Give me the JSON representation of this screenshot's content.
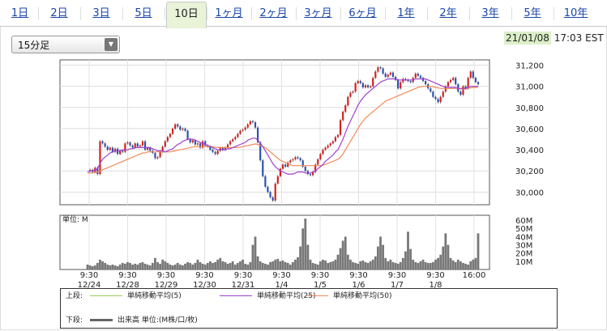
{
  "tabs": [
    {
      "label": "1日",
      "active": false
    },
    {
      "label": "2日",
      "active": false
    },
    {
      "label": "3日",
      "active": false
    },
    {
      "label": "5日",
      "active": false
    },
    {
      "label": "10日",
      "active": true
    },
    {
      "label": "1ヶ月",
      "active": false
    },
    {
      "label": "2ヶ月",
      "active": false
    },
    {
      "label": "3ヶ月",
      "active": false
    },
    {
      "label": "6ヶ月",
      "active": false
    },
    {
      "label": "1年",
      "active": false
    },
    {
      "label": "2年",
      "active": false
    },
    {
      "label": "3年",
      "active": false
    },
    {
      "label": "5年",
      "active": false
    },
    {
      "label": "10年",
      "active": false
    }
  ],
  "interval_select": {
    "value": "15分足"
  },
  "timestamp": {
    "date": "21/01/08",
    "time": " 17:03 EST"
  },
  "colors": {
    "accent_tab": "#e8f3d8",
    "ma5": "#9acd5a",
    "ma25": "#a040d0",
    "ma50": "#f08a5a",
    "up": "#2a4fb0",
    "down": "#d22020",
    "volume": "#777777"
  },
  "chart_data": {
    "type": "candlestick+line",
    "x_tick_labels": [
      {
        "time": "9:30",
        "date": "12/24"
      },
      {
        "time": "9:30",
        "date": "12/28"
      },
      {
        "time": "9:30",
        "date": "12/29"
      },
      {
        "time": "9:30",
        "date": "12/30"
      },
      {
        "time": "9:30",
        "date": "12/31"
      },
      {
        "time": "9:30",
        "date": "1/4"
      },
      {
        "time": "9:30",
        "date": "1/5"
      },
      {
        "time": "9:30",
        "date": "1/6"
      },
      {
        "time": "9:30",
        "date": "1/7"
      },
      {
        "time": "9:30",
        "date": "1/8"
      },
      {
        "time": "16:00",
        "date": ""
      }
    ],
    "price_axis": {
      "ticks": [
        "31,200",
        "31,000",
        "30,800",
        "30,600",
        "30,400",
        "30,200",
        "30,000"
      ],
      "ylim": [
        29880,
        31250
      ]
    },
    "volume_axis": {
      "label": "単位: M",
      "ticks": [
        "60M",
        "50M",
        "40M",
        "30M",
        "20M",
        "10M"
      ],
      "ylim": [
        0,
        66
      ]
    },
    "price_series": [
      30200,
      30210,
      30190,
      30230,
      30170,
      30480,
      30460,
      30430,
      30400,
      30420,
      30380,
      30410,
      30360,
      30390,
      30380,
      30460,
      30470,
      30440,
      30420,
      30460,
      30430,
      30440,
      30480,
      30400,
      30420,
      30390,
      30370,
      30320,
      30330,
      30380,
      30430,
      30480,
      30520,
      30550,
      30600,
      30640,
      30620,
      30590,
      30600,
      30580,
      30500,
      30470,
      30490,
      30450,
      30460,
      30420,
      30480,
      30440,
      30430,
      30400,
      30380,
      30360,
      30390,
      30420,
      30400,
      30420,
      30450,
      30480,
      30500,
      30520,
      30550,
      30580,
      30590,
      30610,
      30640,
      30670,
      30660,
      30610,
      30470,
      30300,
      30150,
      30050,
      30000,
      29950,
      29920,
      30080,
      30150,
      30220,
      30260,
      30240,
      30280,
      30300,
      30310,
      30330,
      30320,
      30300,
      30240,
      30200,
      30170,
      30160,
      30190,
      30260,
      30310,
      30360,
      30400,
      30420,
      30440,
      30460,
      30480,
      30520,
      30540,
      30680,
      30760,
      30820,
      30900,
      30940,
      30950,
      31030,
      31050,
      31030,
      30990,
      31010,
      30990,
      31000,
      31080,
      31140,
      31180,
      31170,
      31120,
      31090,
      31110,
      31130,
      31090,
      31060,
      30980,
      31040,
      31070,
      31060,
      31050,
      31040,
      31080,
      31120,
      31100,
      31080,
      31050,
      31020,
      30980,
      30950,
      30900,
      30880,
      30850,
      30900,
      30950,
      31000,
      31040,
      31060,
      31080,
      31020,
      30950,
      30920,
      31000,
      30980,
      31080,
      31140,
      31080,
      31040,
      31020
    ],
    "ma25_series": [
      30190,
      30200,
      30200,
      30210,
      30220,
      30270,
      30310,
      30330,
      30350,
      30370,
      30380,
      30390,
      30390,
      30390,
      30400,
      30400,
      30400,
      30410,
      30410,
      30420,
      30420,
      30420,
      30420,
      30420,
      30420,
      30420,
      30410,
      30400,
      30390,
      30390,
      30390,
      30380,
      30390,
      30400,
      30410,
      30430,
      30450,
      30460,
      30480,
      30490,
      30500,
      30500,
      30500,
      30490,
      30480,
      30470,
      30460,
      30450,
      30440,
      30430,
      30420,
      30410,
      30400,
      30400,
      30400,
      30400,
      30410,
      30410,
      30420,
      30430,
      30440,
      30450,
      30460,
      30470,
      30490,
      30500,
      30510,
      30510,
      30490,
      30460,
      30430,
      30390,
      30350,
      30310,
      30270,
      30240,
      30220,
      30200,
      30190,
      30180,
      30170,
      30170,
      30170,
      30180,
      30190,
      30190,
      30190,
      30180,
      30180,
      30180,
      30190,
      30200,
      30220,
      30240,
      30260,
      30290,
      30310,
      30330,
      30350,
      30380,
      30400,
      30450,
      30500,
      30560,
      30620,
      30670,
      30720,
      30770,
      30820,
      30860,
      30890,
      30920,
      30940,
      30960,
      30980,
      31000,
      31020,
      31040,
      31050,
      31060,
      31070,
      31070,
      31070,
      31070,
      31060,
      31060,
      31060,
      31060,
      31060,
      31060,
      31060,
      31070,
      31070,
      31070,
      31070,
      31070,
      31060,
      31050,
      31040,
      31030,
      31020,
      31010,
      31000,
      30990,
      30990,
      30990,
      30990,
      30990,
      30980,
      30980,
      30980,
      30980,
      30990,
      31000,
      31000,
      31000,
      31000
    ],
    "ma50_series": [
      30180,
      30180,
      30180,
      30185,
      30190,
      30200,
      30210,
      30220,
      30230,
      30240,
      30250,
      30260,
      30270,
      30280,
      30290,
      30300,
      30310,
      30320,
      30330,
      30340,
      30350,
      30360,
      30370,
      30370,
      30380,
      30380,
      30380,
      30380,
      30380,
      30380,
      30380,
      30380,
      30380,
      30380,
      30385,
      30390,
      30395,
      30400,
      30405,
      30410,
      30415,
      30420,
      30425,
      30430,
      30430,
      30430,
      30430,
      30430,
      30430,
      30430,
      30430,
      30425,
      30420,
      30420,
      30420,
      30420,
      30420,
      30420,
      30420,
      30420,
      30420,
      30425,
      30430,
      30435,
      30440,
      30445,
      30450,
      30455,
      30450,
      30440,
      30430,
      30420,
      30400,
      30380,
      30360,
      30340,
      30320,
      30300,
      30290,
      30280,
      30270,
      30260,
      30250,
      30250,
      30250,
      30250,
      30250,
      30250,
      30250,
      30250,
      30250,
      30250,
      30250,
      30250,
      30255,
      30260,
      30270,
      30280,
      30290,
      30300,
      30310,
      30330,
      30360,
      30400,
      30440,
      30480,
      30520,
      30560,
      30600,
      30640,
      30670,
      30700,
      30720,
      30740,
      30760,
      30780,
      30800,
      30820,
      30840,
      30860,
      30870,
      30880,
      30890,
      30900,
      30910,
      30920,
      30930,
      30940,
      30950,
      30960,
      30970,
      30980,
      30990,
      30995,
      31000,
      31000,
      31000,
      31000,
      30995,
      30990,
      30985,
      30980,
      30980,
      30980,
      30980,
      30980,
      30980,
      30980,
      30980,
      30975,
      30975,
      30975,
      30980,
      30985,
      30990,
      30990,
      30990
    ],
    "volume_series": [
      6,
      5,
      4,
      5,
      8,
      12,
      10,
      8,
      6,
      5,
      6,
      5,
      4,
      6,
      8,
      7,
      9,
      8,
      6,
      7,
      6,
      8,
      9,
      7,
      6,
      5,
      8,
      14,
      9,
      7,
      12,
      10,
      8,
      6,
      5,
      6,
      8,
      6,
      5,
      7,
      9,
      8,
      6,
      8,
      12,
      9,
      7,
      6,
      8,
      10,
      8,
      9,
      12,
      14,
      10,
      9,
      7,
      8,
      10,
      6,
      8,
      10,
      12,
      7,
      6,
      9,
      30,
      40,
      16,
      10,
      8,
      7,
      6,
      9,
      10,
      12,
      13,
      10,
      11,
      9,
      8,
      6,
      9,
      12,
      15,
      28,
      50,
      62,
      30,
      12,
      8,
      7,
      6,
      10,
      12,
      11,
      8,
      9,
      10,
      12,
      18,
      26,
      35,
      40,
      18,
      12,
      9,
      8,
      7,
      10,
      11,
      9,
      8,
      10,
      12,
      16,
      28,
      40,
      30,
      14,
      10,
      12,
      9,
      8,
      7,
      9,
      14,
      22,
      46,
      25,
      12,
      9,
      8,
      10,
      12,
      9,
      8,
      8,
      9,
      12,
      14,
      18,
      28,
      44,
      30,
      14,
      11,
      9,
      12,
      10,
      8,
      7,
      6,
      10,
      12,
      14,
      44
    ]
  },
  "legend": {
    "upper_label": "上段:",
    "lower_label": "下段:",
    "items": [
      {
        "label": "単純移動平均(5)"
      },
      {
        "label": "単純移動平均(25)"
      },
      {
        "label": "単純移動平均(50)"
      }
    ],
    "volume_label": "出来高 単位:(M株/口/枚)"
  }
}
